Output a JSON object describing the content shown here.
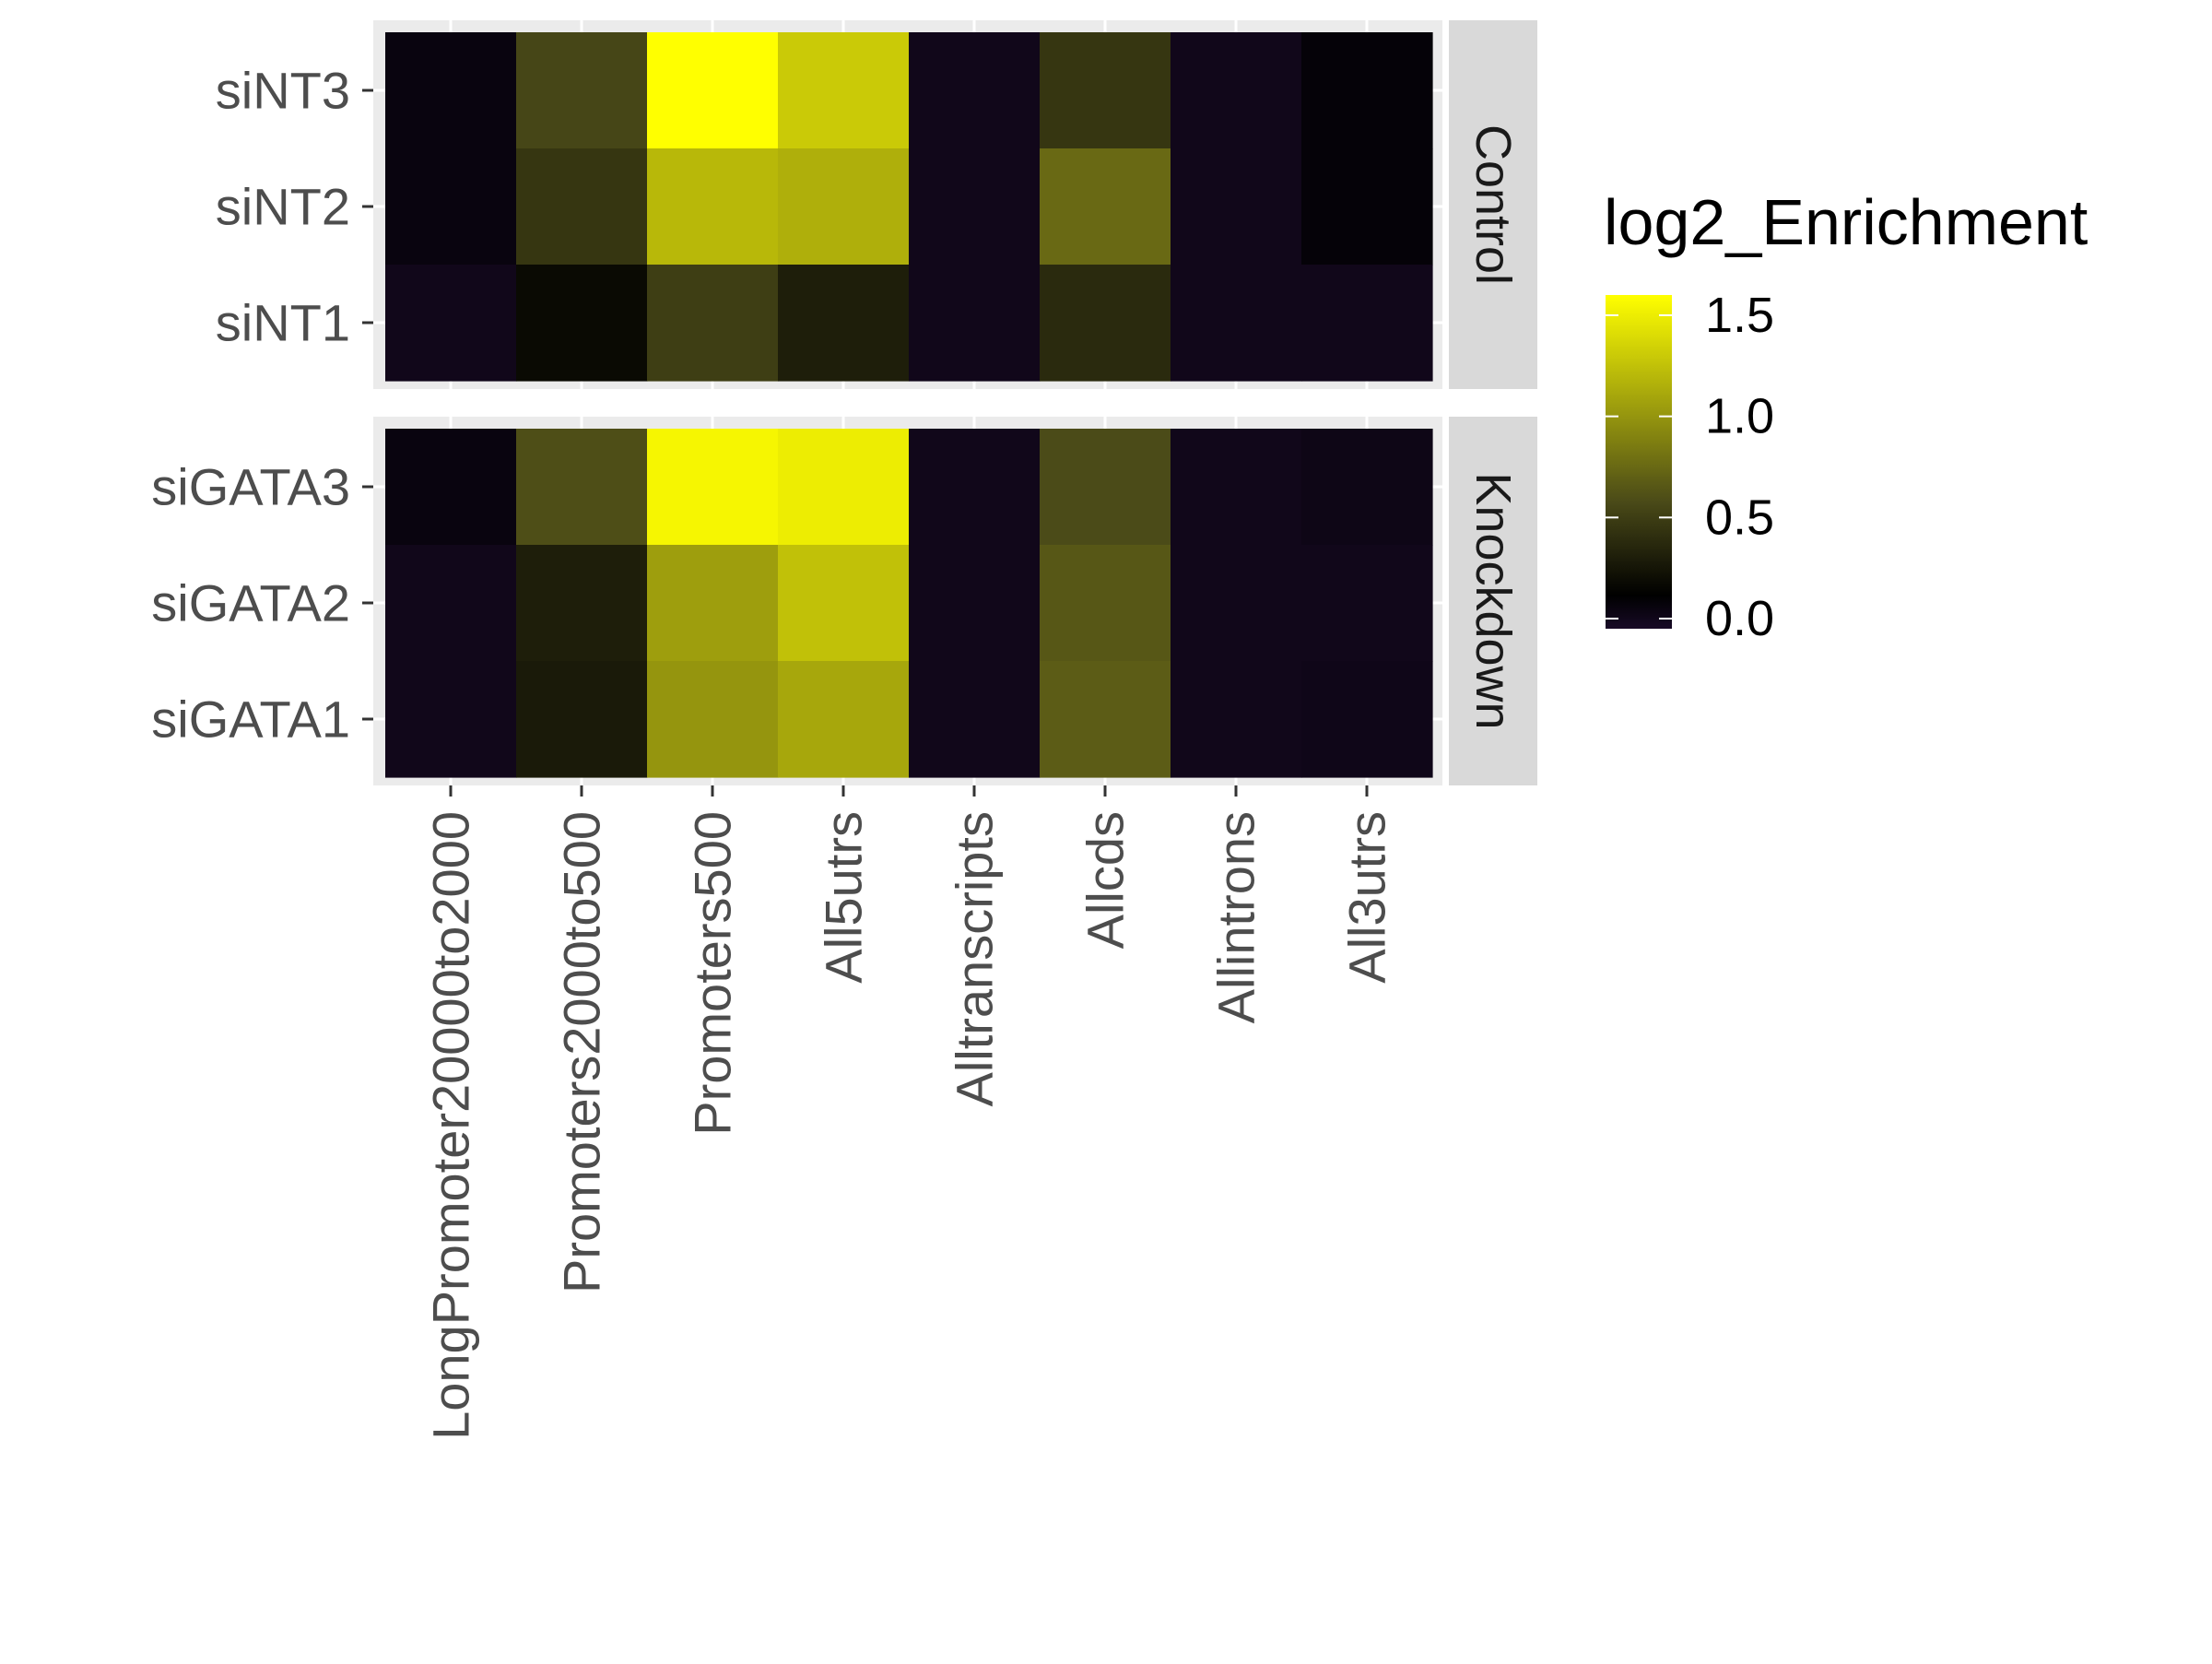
{
  "chart_data": {
    "type": "heatmap",
    "legend_title": "log2_Enrichment",
    "legend_position": "right",
    "color_range": [
      -0.05,
      1.6
    ],
    "legend_ticks": [
      0.0,
      0.5,
      1.0,
      1.5
    ],
    "legend_tick_labels": [
      "0.0",
      "0.5",
      "1.0",
      "1.5"
    ],
    "colors": {
      "low": "#180a26",
      "mid": "#000000",
      "mid2": "#4a4a18",
      "high": "#ffff00",
      "panel_bg": "#ebebeb",
      "grid": "#ffffff",
      "strip_bg": "#d9d9d9"
    },
    "columns": [
      "LongPromoter20000to2000",
      "Promoters2000to500",
      "Promoters500",
      "All5utrs",
      "Alltranscripts",
      "Allcds",
      "Allintrons",
      "All3utrs"
    ],
    "facets": [
      {
        "label": "Control",
        "rows": [
          "siNT3",
          "siNT2",
          "siNT1"
        ],
        "values": [
          [
            0.05,
            0.55,
            1.6,
            1.3,
            0.0,
            0.45,
            0.0,
            0.08
          ],
          [
            0.05,
            0.45,
            1.2,
            1.15,
            0.0,
            0.75,
            0.0,
            0.08
          ],
          [
            0.0,
            0.18,
            0.5,
            0.3,
            0.0,
            0.38,
            0.0,
            0.0
          ]
        ]
      },
      {
        "label": "Knockdown",
        "rows": [
          "siGATA3",
          "siGATA2",
          "siGATA1"
        ],
        "values": [
          [
            0.05,
            0.6,
            1.55,
            1.5,
            0.0,
            0.58,
            0.0,
            0.02
          ],
          [
            0.0,
            0.3,
            1.05,
            1.25,
            0.0,
            0.65,
            0.0,
            0.0
          ],
          [
            0.0,
            0.28,
            1.0,
            1.1,
            0.0,
            0.68,
            0.0,
            0.01
          ]
        ]
      }
    ]
  }
}
